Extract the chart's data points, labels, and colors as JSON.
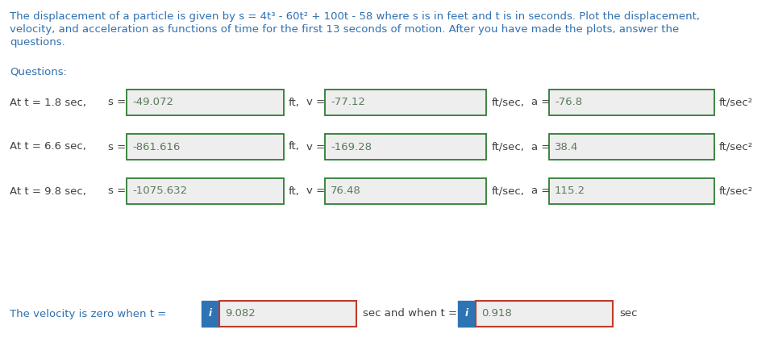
{
  "background_color": "#ffffff",
  "title_lines": [
    "The displacement of a particle is given by s = 4t³ - 60t² + 100t - 58 where s is in feet and t is in seconds. Plot the displacement,",
    "velocity, and acceleration as functions of time for the first 13 seconds of motion. After you have made the plots, answer the",
    "questions."
  ],
  "title_color": "#3070B0",
  "questions_label": "Questions:",
  "questions_color": "#3070B0",
  "rows": [
    {
      "label": "At t = 1.8 sec,",
      "s_value": "-49.072",
      "v_value": "-77.12",
      "a_value": "-76.8"
    },
    {
      "label": "At t = 6.6 sec,",
      "s_value": "-861.616",
      "v_value": "-169.28",
      "a_value": "38.4"
    },
    {
      "label": "At t = 9.8 sec,",
      "s_value": "-1075.632",
      "v_value": "76.48",
      "a_value": "115.2"
    }
  ],
  "velocity_zero_text": "The velocity is zero when t =",
  "velocity_zero_color": "#3070B0",
  "vel_zero_value1": "9.082",
  "vel_zero_mid": "sec and when t =",
  "vel_zero_value2": "0.918",
  "vel_zero_end": "sec",
  "box_fill_color": "#eeeeee",
  "box_edge_color": "#2e7d32",
  "text_color": "#5a7a5a",
  "label_color": "#404040",
  "info_button_color": "#2E74B5",
  "red_box_edge_color": "#c0392b",
  "font_size": 9.5,
  "title_font_size": 9.5
}
